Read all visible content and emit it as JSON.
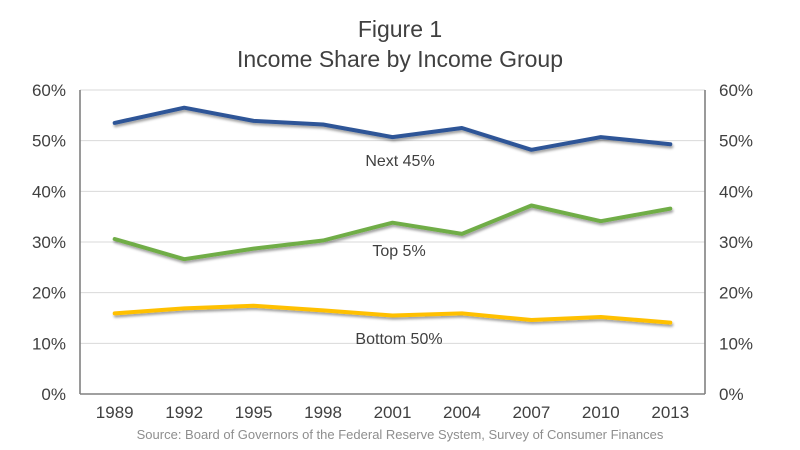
{
  "title": {
    "line1": "Figure 1",
    "line2": "Income Share by Income Group"
  },
  "source": "Source: Board of Governors of the Federal Reserve System, Survey of Consumer Finances",
  "colors": {
    "title_text": "#404040",
    "tick_label": "#404040",
    "axis_line": "#808080",
    "gridline": "#d9d9d9",
    "source_text": "#8e8e8e",
    "series_blue": "#2E5597",
    "series_green": "#70AD47",
    "series_gold": "#FFC000"
  },
  "chart_data": {
    "type": "line",
    "title": "Figure 1 Income Share by Income Group",
    "xlabel": "",
    "ylabel": "",
    "categories": [
      "1989",
      "1992",
      "1995",
      "1998",
      "2001",
      "2004",
      "2007",
      "2010",
      "2013"
    ],
    "series": [
      {
        "name": "Next 45%",
        "color": "#2E5597",
        "values": [
          53.5,
          56.5,
          53.9,
          53.2,
          50.7,
          52.5,
          48.2,
          50.7,
          49.3
        ]
      },
      {
        "name": "Top 5%",
        "color": "#70AD47",
        "values": [
          30.6,
          26.6,
          28.7,
          30.3,
          33.8,
          31.6,
          37.2,
          34.1,
          36.6
        ]
      },
      {
        "name": "Bottom 50%",
        "color": "#FFC000",
        "values": [
          15.9,
          16.9,
          17.4,
          16.5,
          15.5,
          15.9,
          14.6,
          15.2,
          14.1
        ]
      }
    ],
    "ylim": [
      0,
      60
    ],
    "ytick_step": 10,
    "ytick_labels": [
      "0%",
      "10%",
      "20%",
      "30%",
      "40%",
      "50%",
      "60%"
    ],
    "y_axis_sides": "both",
    "grid": true,
    "legend_position": "inline-labels"
  }
}
